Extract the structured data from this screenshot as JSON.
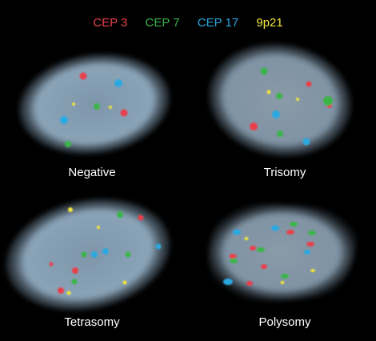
{
  "legend": [
    {
      "label": "CEP 3",
      "color": "#e8414b"
    },
    {
      "label": "CEP 7",
      "color": "#3ab54a"
    },
    {
      "label": "CEP 17",
      "color": "#29a8e0"
    },
    {
      "label": "9p21",
      "color": "#f2e53a"
    }
  ],
  "panels": [
    {
      "label": "Negative"
    },
    {
      "label": "Trisomy"
    },
    {
      "label": "Tetrasomy"
    },
    {
      "label": "Polysomy"
    }
  ],
  "colors": {
    "background": "#000000",
    "nucleus": "#8da4b8",
    "cep3": "#e8414b",
    "cep7": "#3ab54a",
    "cep17": "#29a8e0",
    "p21": "#f2e53a"
  }
}
